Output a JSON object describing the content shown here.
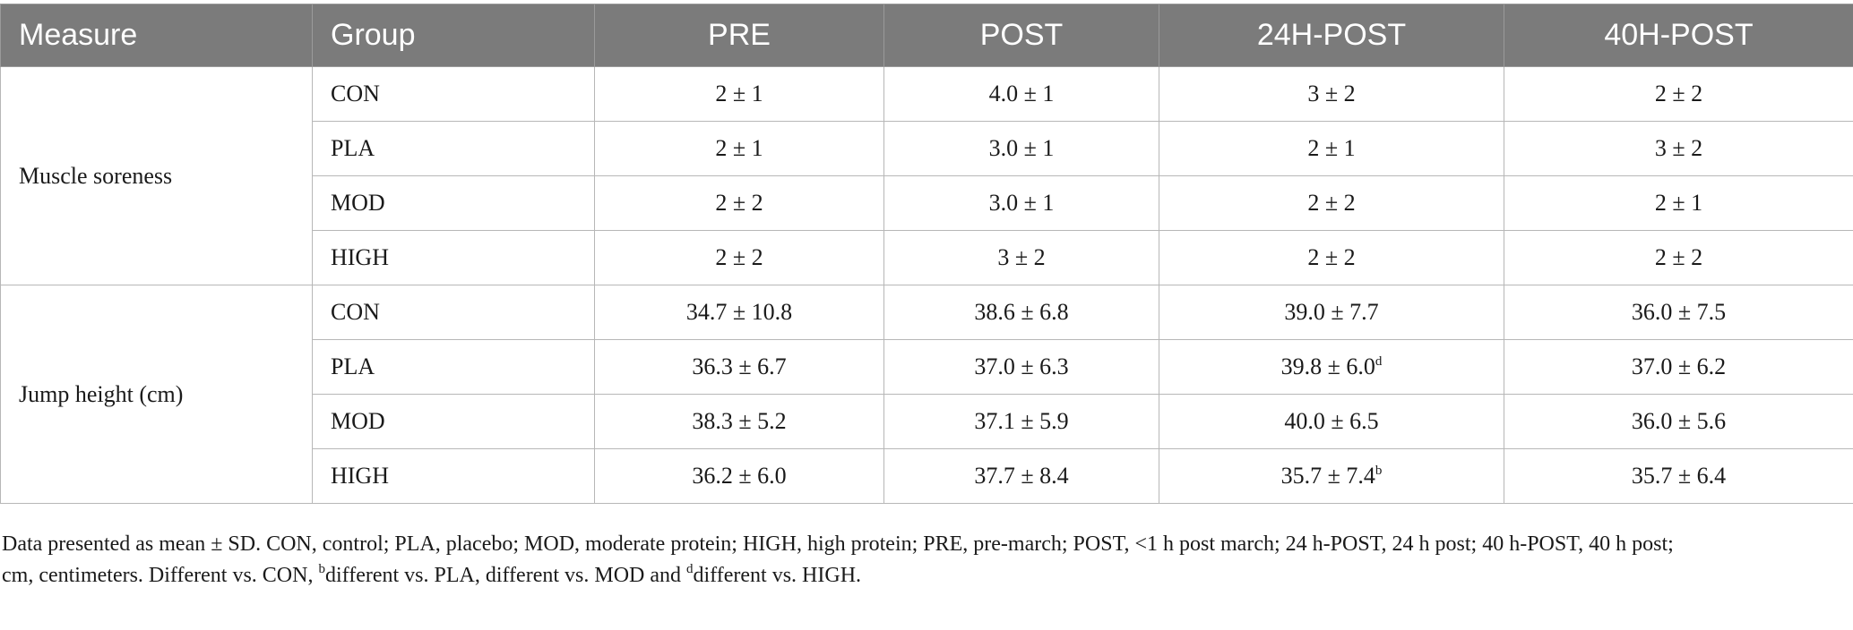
{
  "headers": [
    "Measure",
    "Group",
    "PRE",
    "POST",
    "24H-POST",
    "40H-POST"
  ],
  "sections": [
    {
      "measure": "Muscle soreness",
      "rows": [
        {
          "group": "CON",
          "values": [
            {
              "v": "2 ± 1"
            },
            {
              "v": "4.0 ± 1"
            },
            {
              "v": "3 ± 2"
            },
            {
              "v": "2 ± 2"
            }
          ]
        },
        {
          "group": "PLA",
          "values": [
            {
              "v": "2 ± 1"
            },
            {
              "v": "3.0 ± 1"
            },
            {
              "v": "2 ± 1"
            },
            {
              "v": "3 ± 2"
            }
          ]
        },
        {
          "group": "MOD",
          "values": [
            {
              "v": "2 ± 2"
            },
            {
              "v": "3.0 ± 1"
            },
            {
              "v": "2 ± 2"
            },
            {
              "v": "2 ± 1"
            }
          ]
        },
        {
          "group": "HIGH",
          "values": [
            {
              "v": "2 ± 2"
            },
            {
              "v": "3 ± 2"
            },
            {
              "v": "2 ± 2"
            },
            {
              "v": "2 ± 2"
            }
          ]
        }
      ]
    },
    {
      "measure": "Jump height (cm)",
      "rows": [
        {
          "group": "CON",
          "values": [
            {
              "v": "34.7 ± 10.8"
            },
            {
              "v": "38.6 ± 6.8"
            },
            {
              "v": "39.0 ± 7.7"
            },
            {
              "v": "36.0 ± 7.5"
            }
          ]
        },
        {
          "group": "PLA",
          "values": [
            {
              "v": "36.3 ± 6.7"
            },
            {
              "v": "37.0 ± 6.3"
            },
            {
              "v": "39.8 ± 6.0",
              "sup": "d"
            },
            {
              "v": "37.0 ± 6.2"
            }
          ]
        },
        {
          "group": "MOD",
          "values": [
            {
              "v": "38.3 ± 5.2"
            },
            {
              "v": "37.1 ± 5.9"
            },
            {
              "v": "40.0 ± 6.5"
            },
            {
              "v": "36.0 ± 5.6"
            }
          ]
        },
        {
          "group": "HIGH",
          "values": [
            {
              "v": "36.2 ± 6.0"
            },
            {
              "v": "37.7 ± 8.4"
            },
            {
              "v": "35.7 ± 7.4",
              "sup": "b"
            },
            {
              "v": "35.7 ± 6.4"
            }
          ]
        }
      ]
    }
  ],
  "footnote": {
    "line1": "Data presented as mean ± SD. CON, control; PLA, placebo; MOD, moderate protein; HIGH, high protein; PRE, pre-march; POST, <1 h post march; 24 h-POST, 24 h post; 40 h-POST, 40 h post;",
    "line2_a": "cm, centimeters. Different vs. CON, ",
    "sup_b": "b",
    "line2_b": "different vs. PLA, different vs. MOD and ",
    "sup_d": "d",
    "line2_c": "different vs. HIGH."
  }
}
